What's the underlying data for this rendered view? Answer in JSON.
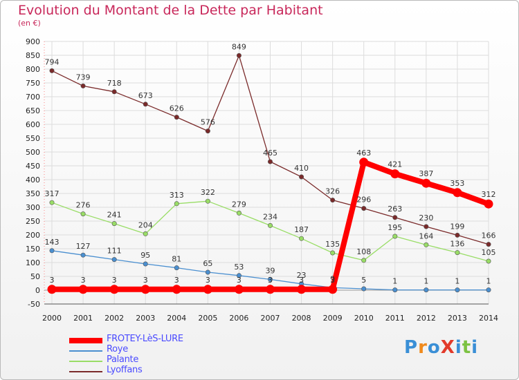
{
  "title": "Evolution du Montant de la Dette par Habitant",
  "subtitle": "(en €)",
  "logo": {
    "text": "ProXiti",
    "colors": [
      "#3a8fd6",
      "#f08a1c",
      "#3a8fd6",
      "#e23a2a",
      "#3a8fd6",
      "#7cc242",
      "#3a8fd6"
    ]
  },
  "chart_data": {
    "type": "line",
    "x": [
      2000,
      2001,
      2002,
      2003,
      2004,
      2005,
      2006,
      2007,
      2008,
      2009,
      2010,
      2011,
      2012,
      2013,
      2014
    ],
    "ylim": [
      -50,
      900
    ],
    "yticks": [
      -50,
      0,
      50,
      100,
      150,
      200,
      250,
      300,
      350,
      400,
      450,
      500,
      550,
      600,
      650,
      700,
      750,
      800,
      850,
      900
    ],
    "grid": true,
    "legend_position": "bottom-left",
    "series": [
      {
        "name": "FROTEY-LèS-LURE",
        "color": "#ff0000",
        "values": [
          3,
          3,
          3,
          3,
          3,
          3,
          3,
          3,
          3,
          3,
          463,
          421,
          387,
          353,
          312
        ]
      },
      {
        "name": "Roye",
        "color": "#4a8fd0",
        "values": [
          143,
          127,
          111,
          95,
          81,
          65,
          53,
          39,
          23,
          9,
          5,
          1,
          1,
          1,
          1
        ]
      },
      {
        "name": "Palante",
        "color": "#99dd66",
        "values": [
          317,
          276,
          241,
          204,
          313,
          322,
          279,
          234,
          187,
          135,
          108,
          195,
          164,
          136,
          105
        ]
      },
      {
        "name": "Lyoffans",
        "color": "#7a2a2a",
        "values": [
          794,
          739,
          718,
          673,
          626,
          576,
          849,
          465,
          410,
          326,
          296,
          263,
          230,
          199,
          166
        ]
      }
    ]
  }
}
